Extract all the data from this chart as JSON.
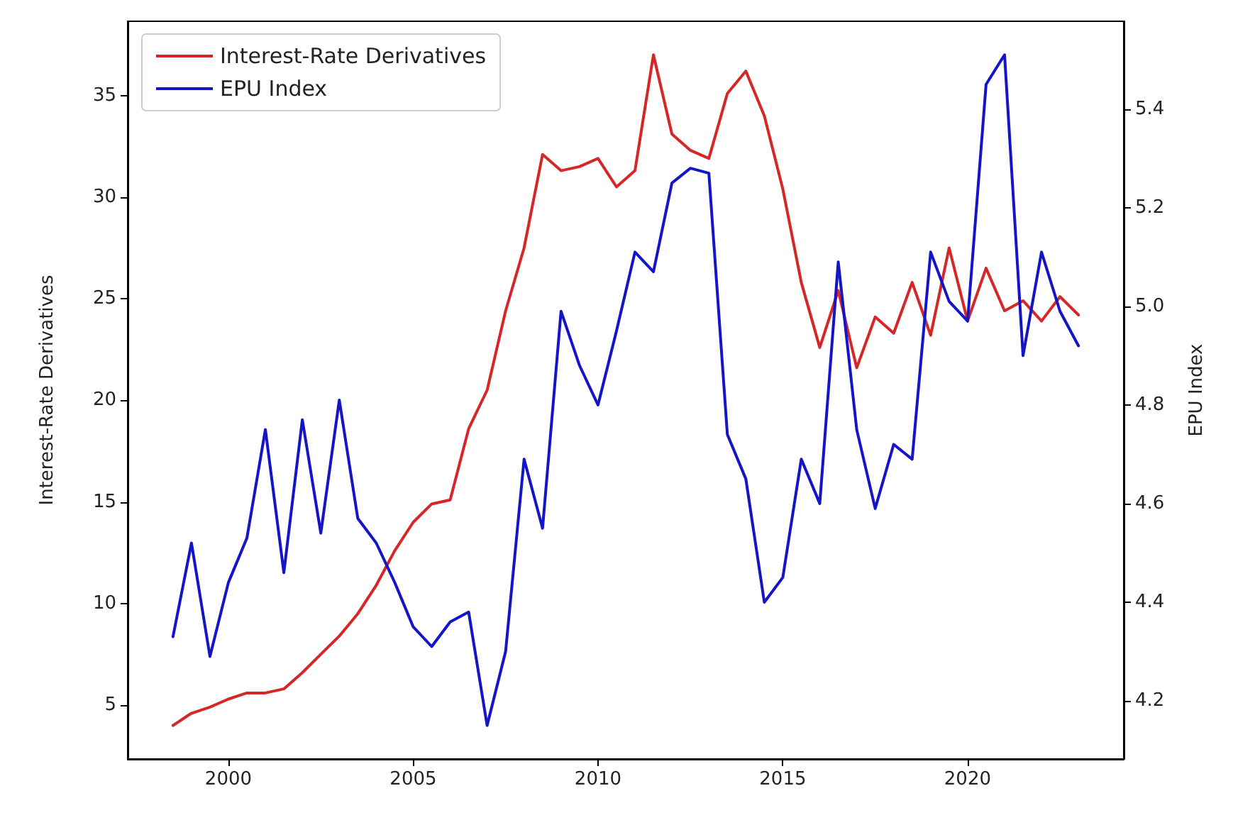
{
  "chart_data": {
    "type": "line",
    "ylabel": "Interest-Rate Derivatives",
    "y2label": "EPU Index",
    "x": [
      1998.5,
      1999,
      1999.5,
      2000,
      2000.5,
      2001,
      2001.5,
      2002,
      2002.5,
      2003,
      2003.5,
      2004,
      2004.5,
      2005,
      2005.5,
      2006,
      2006.5,
      2007,
      2007.5,
      2008,
      2008.5,
      2009,
      2009.5,
      2010,
      2010.5,
      2011,
      2011.5,
      2012,
      2012.5,
      2013,
      2013.5,
      2014,
      2014.5,
      2015,
      2015.5,
      2016,
      2016.5,
      2017,
      2017.5,
      2018,
      2018.5,
      2019,
      2019.5,
      2020,
      2020.5,
      2021,
      2021.5,
      2022,
      2022.5,
      2023
    ],
    "series": [
      {
        "name": "Interest-Rate Derivatives",
        "color": "#d62728",
        "values": [
          4.0,
          4.6,
          4.9,
          5.3,
          5.6,
          5.6,
          5.8,
          6.6,
          7.5,
          8.4,
          9.5,
          10.9,
          12.6,
          14.0,
          14.9,
          15.1,
          18.6,
          20.5,
          24.4,
          27.5,
          32.1,
          31.3,
          31.5,
          31.9,
          30.5,
          31.3,
          37.0,
          33.1,
          32.3,
          31.9,
          35.1,
          36.2,
          34.0,
          30.4,
          25.8,
          22.6,
          25.4,
          21.6,
          24.1,
          23.3,
          25.8,
          23.2,
          27.5,
          23.9,
          26.5,
          24.4,
          24.9,
          23.9,
          25.1,
          24.2
        ]
      },
      {
        "name": "EPU Index",
        "color": "#1515c8",
        "axis": "y2",
        "values": [
          4.33,
          4.52,
          4.29,
          4.44,
          4.53,
          4.75,
          4.46,
          4.77,
          4.54,
          4.81,
          4.57,
          4.52,
          4.44,
          4.35,
          4.31,
          4.36,
          4.38,
          4.15,
          4.3,
          4.69,
          4.55,
          4.99,
          4.88,
          4.8,
          4.95,
          5.11,
          5.07,
          5.25,
          5.28,
          5.27,
          4.74,
          4.65,
          4.4,
          4.45,
          4.69,
          4.6,
          5.09,
          4.75,
          4.59,
          4.72,
          4.69,
          5.11,
          5.01,
          4.97,
          5.45,
          5.51,
          4.9,
          5.11,
          4.99,
          4.92
        ]
      }
    ],
    "xlim": [
      1997.275,
      2024.225
    ],
    "xticks": [
      2000,
      2005,
      2010,
      2015,
      2020
    ],
    "ylim": [
      2.35,
      38.65
    ],
    "yticks": [
      5,
      10,
      15,
      20,
      25,
      30,
      35
    ],
    "y2lim": [
      4.082,
      5.578
    ],
    "y2ticks": [
      4.2,
      4.4,
      4.6,
      4.8,
      {
        "value": 5,
        "label": "5.0"
      },
      5.2,
      5.4
    ],
    "legend": "top left",
    "grid": false,
    "line_style": "solid",
    "marker": "none"
  }
}
